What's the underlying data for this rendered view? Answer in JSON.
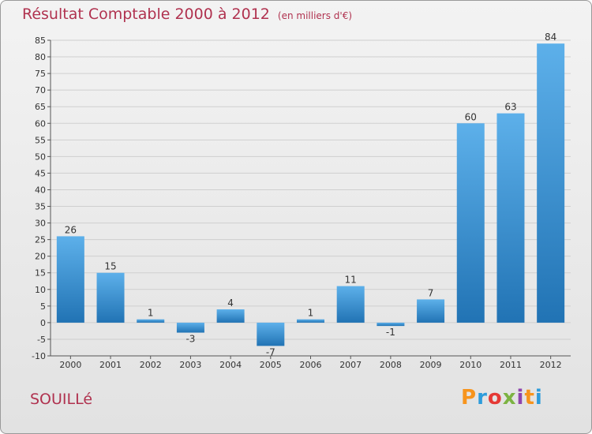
{
  "header": {
    "title": "Résultat Comptable 2000 à 2012",
    "unit": "(en milliers d'€)"
  },
  "footer": {
    "commune": "SOUILLé",
    "logo_text": "Proxiti"
  },
  "colors": {
    "title": "#b0324f",
    "bar_top": "#5db0ea",
    "bar_bottom": "#2173b4",
    "logo": [
      "#f7941d",
      "#2d9cdb",
      "#e53935",
      "#7cb342",
      "#8e44ad",
      "#f7941d",
      "#2d9cdb"
    ]
  },
  "chart_data": {
    "type": "bar",
    "title": "Résultat Comptable 2000 à 2012",
    "subtitle": "(en milliers d'€)",
    "xlabel": "",
    "ylabel": "",
    "categories": [
      "2000",
      "2001",
      "2002",
      "2003",
      "2004",
      "2005",
      "2006",
      "2007",
      "2008",
      "2009",
      "2010",
      "2011",
      "2012"
    ],
    "values": [
      26,
      15,
      1,
      -3,
      4,
      -7,
      1,
      11,
      -1,
      7,
      60,
      63,
      84
    ],
    "ylim": [
      -10,
      85
    ],
    "yticks": [
      -10,
      -5,
      0,
      5,
      10,
      15,
      20,
      25,
      30,
      35,
      40,
      45,
      50,
      55,
      60,
      65,
      70,
      75,
      80,
      85
    ],
    "grid": true,
    "legend": "none"
  }
}
